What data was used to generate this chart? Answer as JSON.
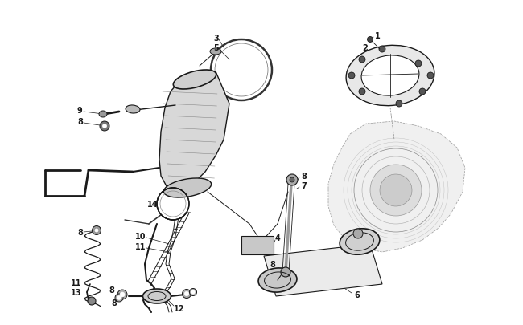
{
  "background_color": "#ffffff",
  "line_color": "#1a1a1a",
  "gray_color": "#666666",
  "light_gray": "#aaaaaa",
  "fig_width": 6.5,
  "fig_height": 4.06,
  "dpi": 100,
  "xlim": [
    0,
    650
  ],
  "ylim": [
    0,
    406
  ]
}
